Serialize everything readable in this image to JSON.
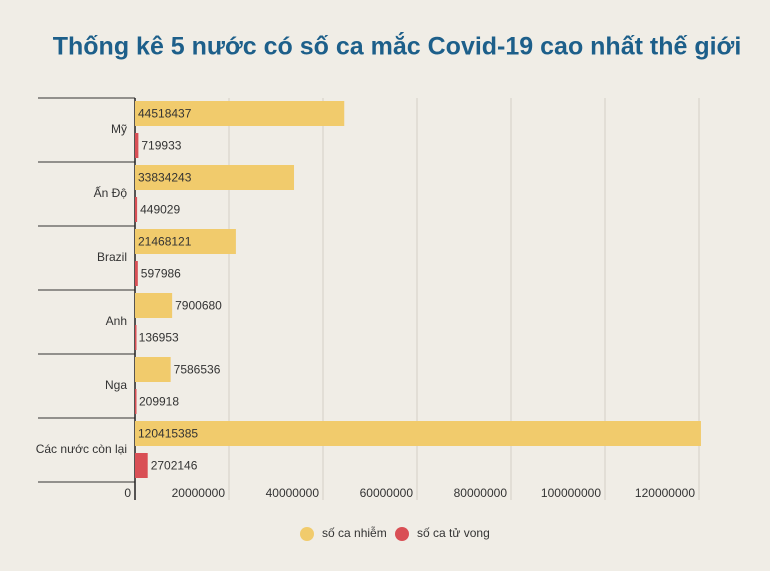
{
  "chart_data": {
    "type": "bar",
    "orientation": "horizontal",
    "title": "Thống kê 5 nước có số ca mắc Covid-19 cao nhất thế giới",
    "categories": [
      "Mỹ",
      "Ấn Độ",
      "Brazil",
      "Anh",
      "Nga",
      "Các nước còn lại"
    ],
    "series": [
      {
        "name": "số ca nhiễm",
        "color": "#f1cb6c",
        "values": [
          44518437,
          33834243,
          21468121,
          7900680,
          7586536,
          120415385
        ]
      },
      {
        "name": "số ca tử vong",
        "color": "#d94f55",
        "values": [
          719933,
          449029,
          597986,
          136953,
          209918,
          2702146
        ]
      }
    ],
    "xlim": [
      0,
      120000000
    ],
    "xticks": [
      0,
      20000000,
      40000000,
      60000000,
      80000000,
      100000000,
      120000000
    ],
    "grid": true,
    "legend": "bottom"
  }
}
